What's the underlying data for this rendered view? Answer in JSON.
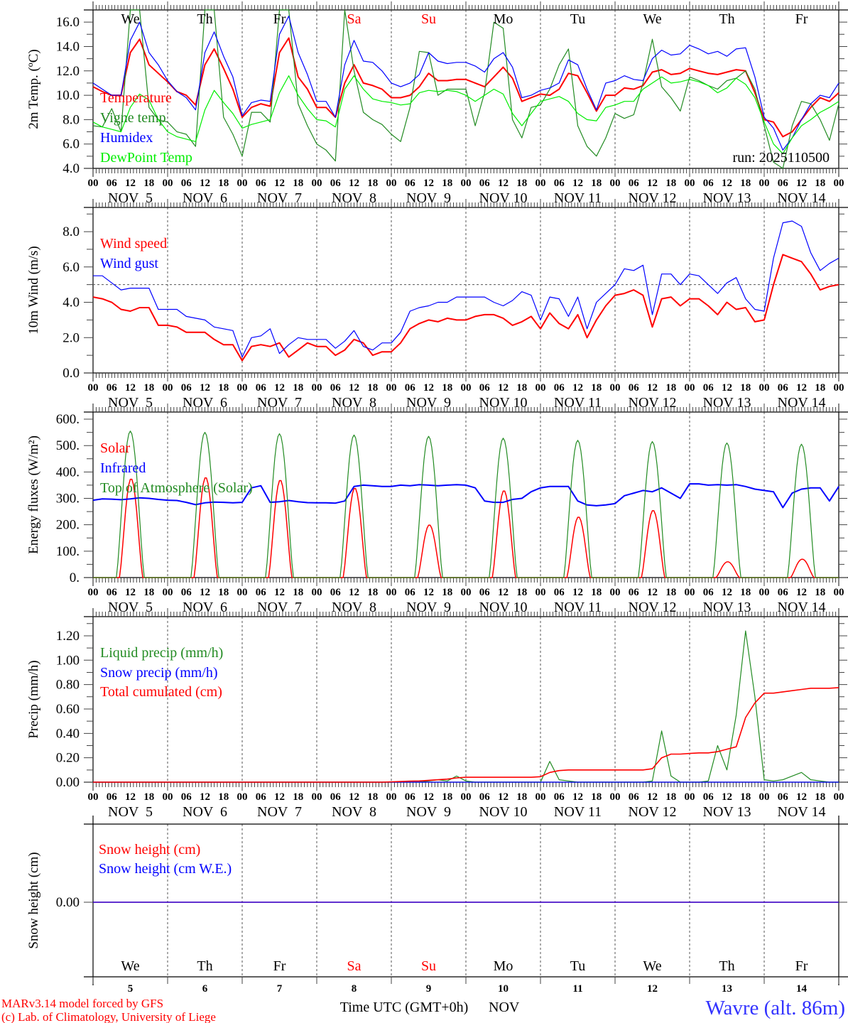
{
  "colors": {
    "red": "#ff0000",
    "blue": "#0000ff",
    "dkgreen": "#228b22",
    "ltgreen": "#00ee00",
    "grid": "#555555",
    "weekend": "#ff0000",
    "station": "#3333ff"
  },
  "days": [
    {
      "abbr": "We",
      "date": "NOV  5",
      "num": "5",
      "weekend": false
    },
    {
      "abbr": "Th",
      "date": "NOV  6",
      "num": "6",
      "weekend": false
    },
    {
      "abbr": "Fr",
      "date": "NOV  7",
      "num": "7",
      "weekend": false
    },
    {
      "abbr": "Sa",
      "date": "NOV  8",
      "num": "8",
      "weekend": true
    },
    {
      "abbr": "Su",
      "date": "NOV  9",
      "num": "9",
      "weekend": true
    },
    {
      "abbr": "Mo",
      "date": "NOV 10",
      "num": "10",
      "weekend": false
    },
    {
      "abbr": "Tu",
      "date": "NOV 11",
      "num": "11",
      "weekend": false
    },
    {
      "abbr": "We",
      "date": "NOV 12",
      "num": "12",
      "weekend": false
    },
    {
      "abbr": "Th",
      "date": "NOV 13",
      "num": "13",
      "weekend": false
    },
    {
      "abbr": "Fr",
      "date": "NOV 14",
      "num": "14",
      "weekend": false
    }
  ],
  "hour_labels": [
    "00",
    "06",
    "12",
    "18"
  ],
  "chart_data": [
    {
      "type": "line",
      "ylabel": "2m Temp. (ºC)",
      "ylim": [
        4,
        17
      ],
      "yticks": [
        "4.0",
        "6.0",
        "8.0",
        "10.0",
        "12.0",
        "14.0",
        "16.0"
      ],
      "x_step_hours": 3,
      "annotation": "run: 2025110500",
      "series": [
        {
          "name": "Temperature",
          "color": "#ff0000",
          "width": 2,
          "values": [
            10.7,
            10.3,
            10.0,
            10.0,
            13.5,
            14.6,
            12.5,
            11.8,
            11.1,
            10.3,
            10.0,
            9.2,
            12.5,
            13.8,
            12.2,
            10.5,
            8.2,
            9.0,
            9.3,
            9.1,
            13.5,
            14.7,
            11.5,
            10.5,
            9.0,
            9.0,
            8.2,
            11.0,
            12.5,
            11.0,
            10.8,
            10.5,
            9.8,
            9.8,
            10.0,
            10.7,
            11.8,
            11.2,
            11.2,
            11.3,
            11.3,
            11.0,
            10.7,
            11.5,
            12.3,
            11.4,
            9.5,
            9.8,
            10.1,
            10.0,
            10.5,
            11.8,
            11.6,
            10.2,
            8.7,
            10.0,
            10.0,
            10.6,
            10.5,
            10.8,
            11.9,
            12.1,
            11.7,
            11.8,
            12.2,
            12.0,
            11.8,
            11.7,
            11.9,
            12.1,
            12.0,
            10.2,
            8.0,
            7.8,
            6.6,
            7.0,
            8.0,
            9.0,
            9.8,
            9.5,
            10.2
          ]
        },
        {
          "name": "Vigne temp",
          "color": "#228b22",
          "width": 1.2,
          "values": [
            7.5,
            7.4,
            8.9,
            7.0,
            17.0,
            17.0,
            9.0,
            8.0,
            7.8,
            7.0,
            6.8,
            5.8,
            17.0,
            17.0,
            8.2,
            6.8,
            5.0,
            8.6,
            8.6,
            7.8,
            17.0,
            17.0,
            9.3,
            7.5,
            6.0,
            5.5,
            4.6,
            17.0,
            12.0,
            8.6,
            8.0,
            7.6,
            6.8,
            6.2,
            9.0,
            13.6,
            13.5,
            10.0,
            10.5,
            10.5,
            10.5,
            7.5,
            10.2,
            16.0,
            15.5,
            8.0,
            6.5,
            9.0,
            9.2,
            10.5,
            12.5,
            13.8,
            7.5,
            5.8,
            5.0,
            6.5,
            8.5,
            8.1,
            8.4,
            11.0,
            14.6,
            10.7,
            9.8,
            8.7,
            11.5,
            11.2,
            10.8,
            10.5,
            11.2,
            11.4,
            12.0,
            10.5,
            7.5,
            4.5,
            4.0,
            7.5,
            9.5,
            9.3,
            8.0,
            6.3,
            9.3
          ]
        },
        {
          "name": "Humidex",
          "color": "#0000ff",
          "width": 1.2,
          "values": [
            11.0,
            10.5,
            10.0,
            10.0,
            14.5,
            16.0,
            13.5,
            12.5,
            11.2,
            10.3,
            9.8,
            8.8,
            13.5,
            15.2,
            13.2,
            11.5,
            8.3,
            9.4,
            9.6,
            9.5,
            15.0,
            16.5,
            13.5,
            11.7,
            9.5,
            9.5,
            8.2,
            12.5,
            14.5,
            12.8,
            12.7,
            12.0,
            11.0,
            10.7,
            11.0,
            11.7,
            13.5,
            12.8,
            12.6,
            12.7,
            12.7,
            12.4,
            11.9,
            13.0,
            13.5,
            12.3,
            9.8,
            10.0,
            10.4,
            10.6,
            11.0,
            12.9,
            12.5,
            10.5,
            8.8,
            11.0,
            11.2,
            11.6,
            11.3,
            11.2,
            13.0,
            13.7,
            13.3,
            13.4,
            14.1,
            13.8,
            13.4,
            13.6,
            13.2,
            13.8,
            13.9,
            11.5,
            8.2,
            7.3,
            5.5,
            6.5,
            8.0,
            9.3,
            10.0,
            9.8,
            11.0
          ]
        },
        {
          "name": "DewPoint Temp",
          "color": "#00ee00",
          "width": 1.2,
          "values": [
            7.8,
            7.4,
            7.2,
            7.0,
            9.0,
            10.1,
            9.6,
            8.0,
            7.0,
            6.6,
            6.4,
            6.2,
            8.8,
            10.4,
            9.4,
            8.5,
            7.3,
            7.6,
            7.8,
            8.0,
            10.2,
            11.6,
            10.0,
            8.9,
            8.0,
            7.9,
            7.4,
            10.5,
            11.6,
            10.5,
            9.7,
            9.5,
            9.4,
            9.2,
            9.3,
            10.2,
            10.4,
            10.3,
            10.4,
            10.3,
            10.0,
            9.5,
            10.0,
            10.5,
            10.1,
            8.5,
            7.5,
            8.5,
            9.5,
            9.7,
            9.9,
            9.5,
            8.5,
            8.0,
            7.9,
            9.0,
            9.2,
            9.5,
            9.5,
            10.5,
            11.0,
            11.5,
            11.0,
            11.1,
            11.3,
            11.1,
            10.8,
            10.2,
            10.6,
            11.4,
            10.9,
            9.8,
            7.8,
            6.0,
            5.2,
            6.5,
            7.5,
            8.0,
            8.6,
            9.0,
            9.5
          ]
        }
      ]
    },
    {
      "type": "line",
      "ylabel": "10m Wind (m/s)",
      "ylim": [
        0,
        9.37
      ],
      "yticks": [
        "0.0",
        "2.0",
        "4.0",
        "6.0",
        "8.0"
      ],
      "reference_line": 5.0,
      "x_step_hours": 3,
      "series": [
        {
          "name": "Wind speed",
          "color": "#ff0000",
          "width": 2,
          "values": [
            4.3,
            4.2,
            4.0,
            3.6,
            3.5,
            3.7,
            3.7,
            2.7,
            2.7,
            2.6,
            2.3,
            2.3,
            2.3,
            1.9,
            1.6,
            1.6,
            0.7,
            1.5,
            1.6,
            1.5,
            1.7,
            0.9,
            1.3,
            1.7,
            1.5,
            1.5,
            1.0,
            1.3,
            1.9,
            1.7,
            1.0,
            1.2,
            1.2,
            1.7,
            2.5,
            2.8,
            3.0,
            2.9,
            3.1,
            3.0,
            3.0,
            3.2,
            3.3,
            3.3,
            3.1,
            2.7,
            2.9,
            3.2,
            2.5,
            3.4,
            2.8,
            2.5,
            3.3,
            2.0,
            3.0,
            3.8,
            4.4,
            4.5,
            4.7,
            4.4,
            2.6,
            4.2,
            4.3,
            3.8,
            4.2,
            4.2,
            3.8,
            3.3,
            4.0,
            3.6,
            3.7,
            2.9,
            3.0,
            5.0,
            6.7,
            6.5,
            6.3,
            5.6,
            4.7,
            4.9,
            5.0
          ]
        },
        {
          "name": "Wind gust",
          "color": "#0000ff",
          "width": 1.2,
          "values": [
            5.5,
            5.5,
            5.1,
            4.7,
            4.8,
            4.8,
            4.8,
            3.6,
            3.6,
            3.6,
            3.2,
            3.1,
            3.0,
            2.6,
            2.5,
            2.4,
            0.9,
            2.0,
            2.1,
            2.5,
            1.1,
            1.6,
            2.0,
            1.9,
            1.9,
            1.9,
            1.4,
            1.8,
            2.4,
            1.5,
            1.3,
            1.7,
            1.7,
            2.3,
            3.5,
            3.7,
            3.8,
            4.0,
            4.0,
            4.3,
            4.3,
            4.3,
            4.3,
            4.0,
            3.8,
            4.1,
            4.6,
            4.4,
            3.0,
            4.3,
            4.2,
            3.2,
            4.3,
            2.5,
            4.0,
            4.5,
            5.0,
            5.9,
            5.8,
            6.1,
            3.3,
            5.6,
            5.6,
            5.0,
            5.6,
            5.5,
            5.0,
            4.5,
            5.1,
            5.4,
            4.2,
            3.6,
            3.5,
            6.5,
            8.5,
            8.6,
            8.3,
            6.8,
            5.8,
            6.2,
            6.5
          ]
        }
      ]
    },
    {
      "type": "line",
      "ylabel": "Energy fluxes (W/m²)",
      "ylim": [
        0,
        627
      ],
      "yticks": [
        "0.",
        "100.",
        "200.",
        "300.",
        "400.",
        "500.",
        "600."
      ],
      "x_step_hours": 3,
      "series": [
        {
          "name": "Solar",
          "color": "#ff0000",
          "width": 1.5,
          "daily_peak_values": [
            375,
            380,
            370,
            340,
            200,
            330,
            230,
            255,
            60,
            70
          ],
          "diurnal_window_hours": [
            8.5,
            16.0
          ]
        },
        {
          "name": "Infrared",
          "color": "#0000ff",
          "width": 2,
          "values": [
            293,
            298,
            297,
            295,
            298,
            302,
            300,
            296,
            293,
            292,
            285,
            276,
            283,
            286,
            285,
            283,
            285,
            340,
            348,
            285,
            287,
            292,
            287,
            284,
            283,
            283,
            282,
            290,
            345,
            350,
            348,
            345,
            345,
            350,
            348,
            352,
            350,
            348,
            350,
            352,
            350,
            340,
            290,
            285,
            285,
            296,
            300,
            325,
            340,
            345,
            345,
            345,
            290,
            275,
            272,
            275,
            280,
            310,
            320,
            330,
            325,
            340,
            320,
            300,
            355,
            355,
            350,
            352,
            350,
            352,
            345,
            335,
            330,
            325,
            265,
            320,
            335,
            340,
            340,
            290,
            345
          ]
        },
        {
          "name": "Top of Atmosphere (Solar)",
          "color": "#228b22",
          "width": 1.2,
          "daily_peak_values": [
            555,
            550,
            545,
            540,
            535,
            528,
            520,
            515,
            510,
            505
          ],
          "diurnal_window_hours": [
            7.5,
            16.5
          ]
        }
      ]
    },
    {
      "type": "line",
      "ylabel": "Precip (mm/h)",
      "ylim": [
        0,
        1.357
      ],
      "yticks": [
        "0.00",
        "0.20",
        "0.40",
        "0.60",
        "0.80",
        "1.00",
        "1.20"
      ],
      "x_step_hours": 3,
      "series": [
        {
          "name": "Liquid precip (mm/h)",
          "color": "#228b22",
          "width": 1.2,
          "values": [
            0,
            0,
            0,
            0,
            0,
            0,
            0,
            0,
            0,
            0,
            0,
            0,
            0,
            0,
            0,
            0,
            0,
            0,
            0,
            0,
            0,
            0,
            0,
            0,
            0,
            0,
            0,
            0,
            0,
            0,
            0,
            0,
            0,
            0,
            0,
            0,
            0.01,
            0.02,
            0.01,
            0.05,
            0.01,
            0,
            0,
            0,
            0,
            0,
            0,
            0,
            0,
            0.17,
            0.02,
            0.01,
            0,
            0,
            0,
            0,
            0,
            0,
            0,
            0,
            0.01,
            0.42,
            0.05,
            0,
            0,
            0,
            0.01,
            0.3,
            0.1,
            0.55,
            1.24,
            0.7,
            0.02,
            0.01,
            0.02,
            0.05,
            0.08,
            0.02,
            0.01,
            0,
            0
          ]
        },
        {
          "name": "Snow precip (mm/h)",
          "color": "#0000ff",
          "width": 1.2,
          "values": [
            0,
            0,
            0,
            0,
            0,
            0,
            0,
            0,
            0,
            0,
            0,
            0,
            0,
            0,
            0,
            0,
            0,
            0,
            0,
            0,
            0,
            0,
            0,
            0,
            0,
            0,
            0,
            0,
            0,
            0,
            0,
            0,
            0,
            0,
            0,
            0,
            0,
            0,
            0,
            0,
            0,
            0,
            0,
            0,
            0,
            0,
            0,
            0,
            0,
            0,
            0,
            0,
            0,
            0,
            0,
            0,
            0,
            0,
            0,
            0,
            0,
            0,
            0,
            0,
            0,
            0,
            0,
            0,
            0,
            0,
            0,
            0,
            0,
            0,
            0,
            0,
            0,
            0,
            0,
            0,
            0
          ]
        },
        {
          "name": "Total cumulated (cm)",
          "color": "#ff0000",
          "width": 1.6,
          "values": [
            0,
            0,
            0,
            0,
            0,
            0,
            0,
            0,
            0,
            0,
            0,
            0,
            0,
            0,
            0,
            0,
            0,
            0,
            0,
            0,
            0,
            0,
            0,
            0,
            0,
            0,
            0,
            0,
            0,
            0,
            0,
            0,
            0.003,
            0.005,
            0.008,
            0.01,
            0.015,
            0.02,
            0.025,
            0.035,
            0.04,
            0.04,
            0.04,
            0.04,
            0.04,
            0.04,
            0.04,
            0.04,
            0.045,
            0.08,
            0.095,
            0.1,
            0.1,
            0.1,
            0.1,
            0.1,
            0.1,
            0.1,
            0.1,
            0.1,
            0.11,
            0.2,
            0.23,
            0.23,
            0.235,
            0.24,
            0.24,
            0.25,
            0.27,
            0.29,
            0.53,
            0.65,
            0.73,
            0.73,
            0.74,
            0.75,
            0.76,
            0.77,
            0.77,
            0.77,
            0.775
          ]
        }
      ]
    },
    {
      "type": "line",
      "ylabel": "Snow height (cm)",
      "ylim": [
        -1,
        1
      ],
      "yticks": [
        "0.00"
      ],
      "x_step_hours": 3,
      "series": [
        {
          "name": "Snow height (cm)",
          "color": "#ff0000",
          "width": 1.6,
          "constant_value": 0
        },
        {
          "name": "Snow height (cm W.E.)",
          "color": "#0000ff",
          "width": 1.2,
          "constant_value": 0
        }
      ]
    }
  ],
  "footer": {
    "model": "MARv3.14 model forced by GFS",
    "credit": "(c) Lab. of Climatology, University of Liege",
    "xlabel": "Time UTC (GMT+0h)",
    "month": "NOV",
    "station": "Wavre (alt. 86m)"
  }
}
